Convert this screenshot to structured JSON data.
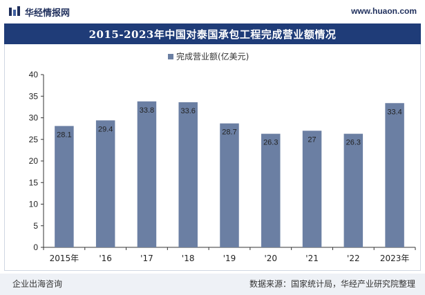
{
  "header": {
    "brand_name": "华经情报网",
    "site_url": "www.huaon.com"
  },
  "footer": {
    "left_text": "企业出海咨询",
    "source_text": "数据来源：国家统计局，华经产业研究院整理"
  },
  "colors": {
    "bar": "#6b7fa3",
    "title_bg": "#1f3c78",
    "axis": "#333333"
  },
  "chart_data": {
    "type": "bar",
    "title": "2015-2023年中国对泰国承包工程完成营业额情况",
    "legend_position": "top-center",
    "grid": false,
    "xlabel": "",
    "ylabel": "",
    "ylim": [
      0,
      40
    ],
    "yticks": [
      "0",
      "5",
      "10",
      "15",
      "20",
      "25",
      "30",
      "35",
      "40"
    ],
    "categories": [
      "2015年",
      "'16",
      "'17",
      "'18",
      "'19",
      "'20",
      "'21",
      "'22",
      "2023年"
    ],
    "series": [
      {
        "name": "完成营业额(亿美元)",
        "values": [
          28.1,
          29.4,
          33.8,
          33.6,
          28.7,
          26.3,
          27,
          26.3,
          33.4
        ],
        "labels": [
          "28.1",
          "29.4",
          "33.8",
          "33.6",
          "28.7",
          "26.3",
          "27",
          "26.3",
          "33.4"
        ]
      }
    ]
  }
}
